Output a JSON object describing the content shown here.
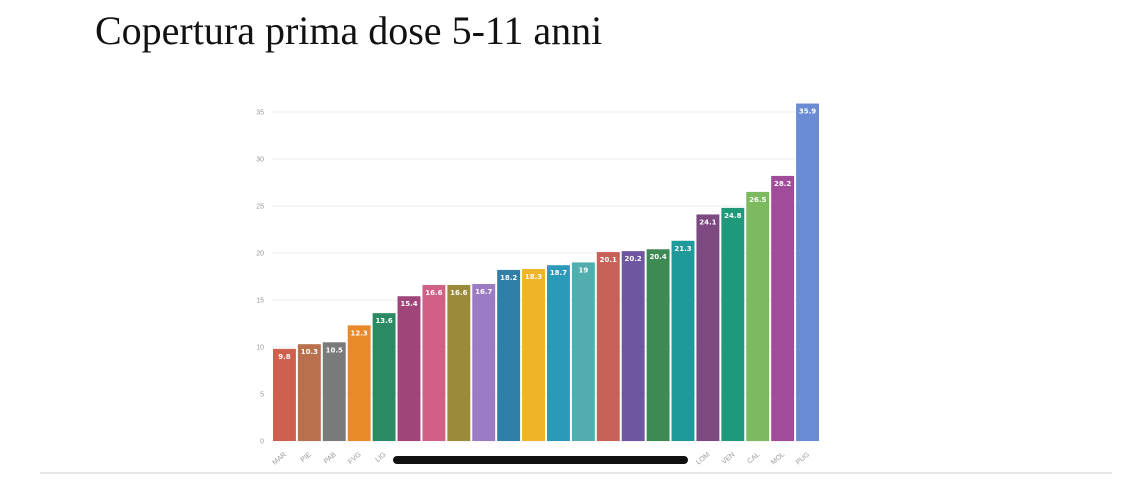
{
  "chart_data": {
    "type": "bar",
    "title": "Copertura prima dose 5-11 anni",
    "categories": [
      "MAR",
      "PIE",
      "PAB",
      "FVG",
      "LIG",
      null,
      null,
      null,
      null,
      null,
      null,
      null,
      null,
      null,
      null,
      null,
      null,
      "LOM",
      "VEN",
      "CAL",
      "MOL",
      "PUG"
    ],
    "values": [
      9.8,
      10.3,
      10.5,
      12.3,
      13.6,
      15.4,
      16.6,
      16.6,
      16.7,
      18.2,
      18.3,
      18.7,
      19,
      20.1,
      20.2,
      20.4,
      21.3,
      24.1,
      24.8,
      26.5,
      28.2,
      35.9
    ],
    "colors": [
      "#d0604e",
      "#b8704d",
      "#7a7a7a",
      "#e8892a",
      "#2a8a64",
      "#a0457a",
      "#d06086",
      "#9a8a3a",
      "#9b7cc4",
      "#2f7fa8",
      "#efb428",
      "#2b9ab8",
      "#52aeae",
      "#c86258",
      "#6e56a0",
      "#3d8a55",
      "#1e9a9a",
      "#7c4a80",
      "#1e9a7a",
      "#7cba60",
      "#a04c9a",
      "#6a8cd4"
    ],
    "ylim": [
      0,
      35
    ],
    "yticks": [
      0,
      5,
      10,
      15,
      20,
      25,
      30,
      35
    ],
    "grid": true
  }
}
